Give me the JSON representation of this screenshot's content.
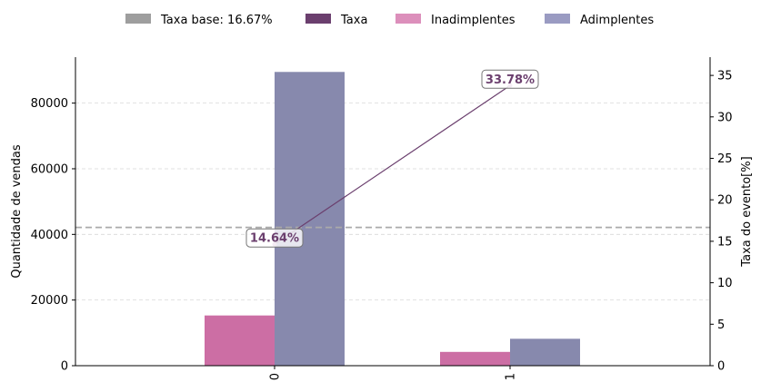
{
  "chart_data": {
    "type": "bar",
    "categories": [
      "0",
      "1"
    ],
    "series": [
      {
        "name": "Inadimplentes",
        "values": [
          15300,
          4200
        ],
        "color": "#cc6ea4"
      },
      {
        "name": "Adimplentes",
        "values": [
          89500,
          8200
        ],
        "color": "#8789ad"
      }
    ],
    "rate_series": {
      "name": "Taxa",
      "values": [
        14.64,
        33.78
      ],
      "labels": [
        "14.64%",
        "33.78%"
      ],
      "color": "#6b3f6e"
    },
    "base_rate": {
      "name": "Taxa base: 16.67%",
      "value": 16.67,
      "color": "#9e9e9e"
    },
    "legend": {
      "placement": "top-center",
      "entries": [
        {
          "label": "Taxa base: 16.67%",
          "color": "#9e9e9e"
        },
        {
          "label": "Taxa",
          "color": "#6b3f6e"
        },
        {
          "label": "Inadimplentes",
          "color": "#dc8fbb"
        },
        {
          "label": "Adimplentes",
          "color": "#9a9bc2"
        }
      ]
    },
    "ylabel": "Quantidade de vendas",
    "y2label": "Taxa do evento[%]",
    "ylim": [
      0,
      94000
    ],
    "y2lim": [
      0,
      37.2
    ],
    "yticks": [
      0,
      20000,
      40000,
      60000,
      80000
    ],
    "y2ticks": [
      0,
      5,
      10,
      15,
      20,
      25,
      30,
      35
    ],
    "grid": true
  }
}
